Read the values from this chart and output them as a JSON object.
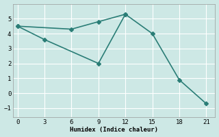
{
  "line1_x": [
    0,
    6,
    9,
    12
  ],
  "line1_y": [
    4.5,
    4.3,
    4.8,
    5.3
  ],
  "line2_x": [
    0,
    3,
    9,
    12,
    15,
    18,
    21
  ],
  "line2_y": [
    4.5,
    3.6,
    2.0,
    5.3,
    4.0,
    0.9,
    -0.7
  ],
  "line_color": "#2a7d76",
  "bg_color": "#cde8e5",
  "grid_color": "#ffffff",
  "xlabel": "Humidex (Indice chaleur)",
  "xlim": [
    -0.5,
    22
  ],
  "ylim": [
    -1.6,
    6.0
  ],
  "xticks": [
    0,
    3,
    6,
    9,
    12,
    15,
    18,
    21
  ],
  "yticks": [
    -1,
    0,
    1,
    2,
    3,
    4,
    5
  ],
  "marker": "D",
  "markersize": 3,
  "linewidth": 1.2
}
